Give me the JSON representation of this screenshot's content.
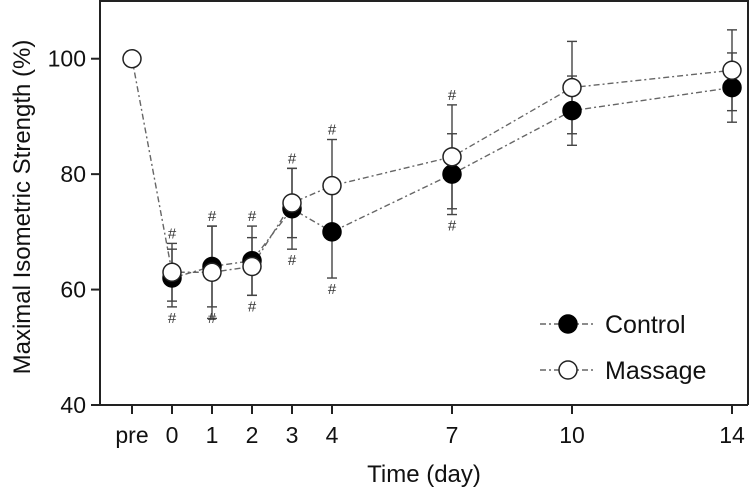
{
  "chart_data": {
    "type": "line",
    "xlabel": "Time (day)",
    "ylabel": "Maximal Isometric Strength (%)",
    "ylim": [
      40,
      110
    ],
    "yticks": [
      40,
      60,
      80,
      100
    ],
    "xlim": [
      -1.8,
      14.4
    ],
    "x_ticks": [
      {
        "label": "pre",
        "x": -1
      },
      {
        "label": "0",
        "x": 0
      },
      {
        "label": "1",
        "x": 1
      },
      {
        "label": "2",
        "x": 2
      },
      {
        "label": "3",
        "x": 3
      },
      {
        "label": "4",
        "x": 4
      },
      {
        "label": "7",
        "x": 7
      },
      {
        "label": "10",
        "x": 10
      },
      {
        "label": "14",
        "x": 14
      }
    ],
    "legend_position": "bottom-right",
    "series": [
      {
        "name": "Control",
        "marker": "filled-circle",
        "x": [
          0,
          1,
          2,
          3,
          4,
          7,
          10,
          14
        ],
        "y": [
          62,
          64,
          65,
          74,
          70,
          80,
          91,
          95
        ],
        "error": [
          5,
          7,
          6,
          7,
          8,
          7,
          6,
          6
        ],
        "significant_below": [
          true,
          true,
          true,
          true,
          true,
          true,
          false,
          false
        ]
      },
      {
        "name": "Massage",
        "marker": "open-circle",
        "x": [
          -1,
          0,
          1,
          2,
          3,
          4,
          7,
          10,
          14
        ],
        "y": [
          100,
          63,
          63,
          64,
          75,
          78,
          83,
          95,
          98
        ],
        "error": [
          0,
          5,
          8,
          5,
          6,
          8,
          9,
          8,
          7
        ],
        "significant_above": [
          false,
          true,
          true,
          true,
          true,
          true,
          true,
          false,
          false
        ]
      }
    ],
    "annotation_symbol": "#"
  },
  "colors": {
    "control_fill": "#000000",
    "massage_fill": "#ffffff",
    "line": "#666666"
  }
}
